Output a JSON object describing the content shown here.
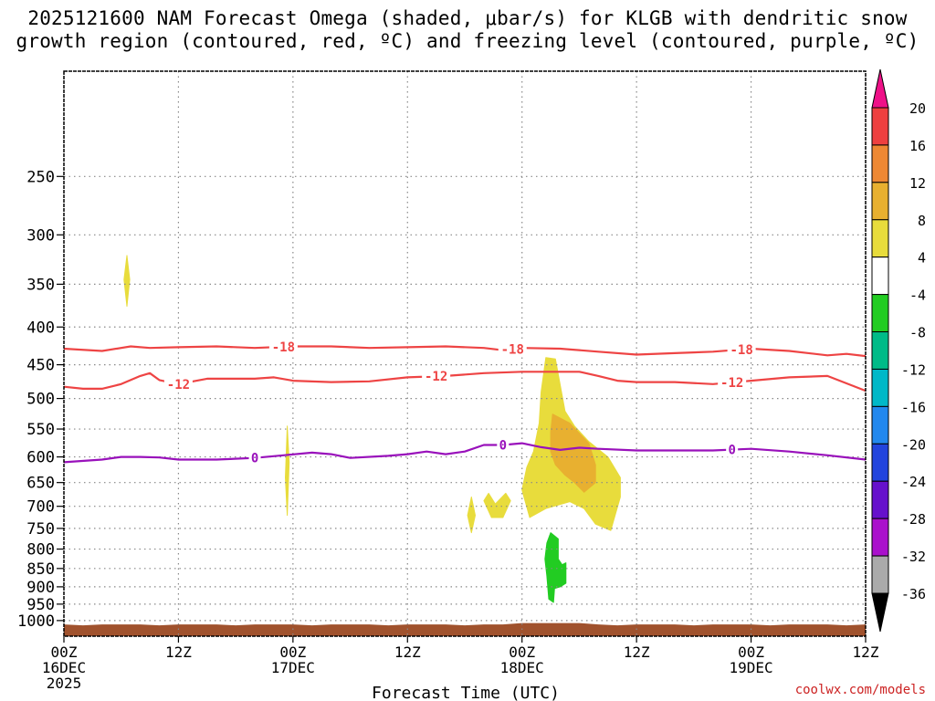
{
  "title": {
    "line1": "2025121600 NAM Forecast Omega (shaded, μbar/s) for KLGB with dendritic snow",
    "line2": "growth region (contoured, red, ºC) and freezing level (contoured, purple, ºC)"
  },
  "watermark": "coolwx.com/models",
  "chart_data": {
    "type": "heatmap",
    "title": "2025121600 NAM Forecast Omega (shaded, μbar/s) for KLGB with dendritic snow growth region (contoured, red, ºC) and freezing level (contoured, purple, ºC)",
    "xlabel": "Forecast Time (UTC)",
    "ylabel": "",
    "x_range_hours": [
      0,
      84
    ],
    "x_ticks": [
      {
        "hour": 0,
        "label": "00Z",
        "date": "16DEC",
        "year": "2025"
      },
      {
        "hour": 12,
        "label": "12Z",
        "date": "",
        "year": ""
      },
      {
        "hour": 24,
        "label": "00Z",
        "date": "17DEC",
        "year": ""
      },
      {
        "hour": 36,
        "label": "12Z",
        "date": "",
        "year": ""
      },
      {
        "hour": 48,
        "label": "00Z",
        "date": "18DEC",
        "year": ""
      },
      {
        "hour": 60,
        "label": "12Z",
        "date": "",
        "year": ""
      },
      {
        "hour": 72,
        "label": "00Z",
        "date": "19DEC",
        "year": ""
      },
      {
        "hour": 84,
        "label": "12Z",
        "date": "",
        "year": ""
      }
    ],
    "y_axis": "pressure (hPa), log scale, inverted",
    "y_range": [
      1050,
      180
    ],
    "y_ticks": [
      250,
      300,
      350,
      400,
      450,
      500,
      550,
      600,
      650,
      700,
      750,
      800,
      850,
      900,
      950,
      1000
    ],
    "grid": true,
    "colorbar": {
      "labels": [
        "20",
        "16",
        "12",
        "8",
        "4",
        "-4",
        "-8",
        "-12",
        "-16",
        "-20",
        "-24",
        "-28",
        "-32",
        "-36"
      ],
      "bins": [
        {
          "from": 16,
          "to": 20,
          "color": "#ee4040"
        },
        {
          "from": 12,
          "to": 16,
          "color": "#ee8833"
        },
        {
          "from": 8,
          "to": 12,
          "color": "#e8b030"
        },
        {
          "from": 4,
          "to": 8,
          "color": "#e8dc3c"
        },
        {
          "from": -4,
          "to": 4,
          "color": "#ffffff"
        },
        {
          "from": -8,
          "to": -4,
          "color": "#22cc22"
        },
        {
          "from": -12,
          "to": -8,
          "color": "#00bb88"
        },
        {
          "from": -16,
          "to": -12,
          "color": "#00b8c8"
        },
        {
          "from": -20,
          "to": -16,
          "color": "#2288ee"
        },
        {
          "from": -24,
          "to": -20,
          "color": "#2244dd"
        },
        {
          "from": -28,
          "to": -24,
          "color": "#6611cc"
        },
        {
          "from": -32,
          "to": -28,
          "color": "#aa11cc"
        },
        {
          "from": -36,
          "to": -32,
          "color": "#aaaaaa"
        }
      ],
      "top_arrow_color": "#ee1188",
      "bottom_arrow_color": "#000000"
    },
    "contours": [
      {
        "label": "-18",
        "color": "#ee4444",
        "label_hours": [
          23,
          47,
          71
        ],
        "points": [
          [
            0,
            428
          ],
          [
            4,
            431
          ],
          [
            7,
            425
          ],
          [
            9,
            427
          ],
          [
            12,
            426
          ],
          [
            16,
            425
          ],
          [
            20,
            427
          ],
          [
            24,
            425
          ],
          [
            28,
            425
          ],
          [
            32,
            427
          ],
          [
            36,
            426
          ],
          [
            40,
            425
          ],
          [
            44,
            427
          ],
          [
            46,
            430
          ],
          [
            48,
            427
          ],
          [
            52,
            428
          ],
          [
            56,
            432
          ],
          [
            60,
            436
          ],
          [
            64,
            434
          ],
          [
            68,
            432
          ],
          [
            72,
            428
          ],
          [
            76,
            431
          ],
          [
            80,
            437
          ],
          [
            82,
            435
          ],
          [
            84,
            438
          ]
        ]
      },
      {
        "label": "-12",
        "color": "#ee4444",
        "label_hours": [
          12,
          39,
          70
        ],
        "points": [
          [
            0,
            482
          ],
          [
            2,
            485
          ],
          [
            4,
            485
          ],
          [
            6,
            478
          ],
          [
            8,
            466
          ],
          [
            9,
            462
          ],
          [
            10,
            472
          ],
          [
            12,
            478
          ],
          [
            15,
            470
          ],
          [
            20,
            470
          ],
          [
            22,
            468
          ],
          [
            24,
            473
          ],
          [
            28,
            475
          ],
          [
            32,
            474
          ],
          [
            36,
            468
          ],
          [
            40,
            466
          ],
          [
            44,
            462
          ],
          [
            48,
            460
          ],
          [
            52,
            460
          ],
          [
            54,
            460
          ],
          [
            56,
            466
          ],
          [
            58,
            473
          ],
          [
            60,
            475
          ],
          [
            64,
            475
          ],
          [
            68,
            478
          ],
          [
            72,
            473
          ],
          [
            76,
            468
          ],
          [
            80,
            466
          ],
          [
            84,
            488
          ]
        ]
      },
      {
        "label": "0",
        "color": "#9911bb",
        "label_hours": [
          20,
          46,
          70
        ],
        "points": [
          [
            0,
            610
          ],
          [
            4,
            605
          ],
          [
            6,
            600
          ],
          [
            8,
            600
          ],
          [
            10,
            601
          ],
          [
            12,
            605
          ],
          [
            16,
            605
          ],
          [
            20,
            602
          ],
          [
            23,
            597
          ],
          [
            26,
            592
          ],
          [
            28,
            595
          ],
          [
            30,
            602
          ],
          [
            34,
            598
          ],
          [
            36,
            595
          ],
          [
            38,
            590
          ],
          [
            40,
            595
          ],
          [
            42,
            590
          ],
          [
            44,
            578
          ],
          [
            46,
            578
          ],
          [
            48,
            575
          ],
          [
            50,
            582
          ],
          [
            52,
            587
          ],
          [
            54,
            583
          ],
          [
            56,
            585
          ],
          [
            60,
            588
          ],
          [
            64,
            588
          ],
          [
            68,
            588
          ],
          [
            72,
            585
          ],
          [
            76,
            590
          ],
          [
            80,
            597
          ],
          [
            84,
            605
          ]
        ]
      }
    ],
    "shaded_regions": [
      {
        "value_bin": "4 to 8",
        "color": "#e8dc3c",
        "points": [
          [
            6.6,
            320
          ],
          [
            6.9,
            345
          ],
          [
            6.6,
            375
          ],
          [
            6.3,
            345
          ]
        ]
      },
      {
        "value_bin": "4 to 8",
        "color": "#e8dc3c",
        "points": [
          [
            23.4,
            545
          ],
          [
            23.6,
            610
          ],
          [
            23.4,
            720
          ],
          [
            23.2,
            640
          ]
        ]
      },
      {
        "value_bin": "4 to 8",
        "color": "#e8dc3c",
        "points": [
          [
            42.7,
            680
          ],
          [
            43.1,
            720
          ],
          [
            42.7,
            760
          ],
          [
            42.3,
            720
          ]
        ]
      },
      {
        "value_bin": "4 to 8",
        "color": "#e8dc3c",
        "points": [
          [
            44,
            688
          ],
          [
            44.5,
            672
          ],
          [
            45.2,
            695
          ],
          [
            46.3,
            672
          ],
          [
            46.8,
            688
          ],
          [
            46,
            725
          ],
          [
            44.8,
            725
          ]
        ]
      },
      {
        "value_bin": "4 to 8",
        "color": "#e8dc3c",
        "points": [
          [
            50.5,
            440
          ],
          [
            51.5,
            442
          ],
          [
            52.5,
            520
          ],
          [
            53.5,
            545
          ],
          [
            55,
            572
          ],
          [
            57,
            600
          ],
          [
            58.3,
            640
          ],
          [
            58.3,
            680
          ],
          [
            57.3,
            755
          ],
          [
            55.7,
            740
          ],
          [
            54.5,
            705
          ],
          [
            53,
            690
          ],
          [
            50.5,
            705
          ],
          [
            48.8,
            725
          ],
          [
            48,
            665
          ],
          [
            48.5,
            620
          ],
          [
            49.2,
            590
          ],
          [
            49.8,
            540
          ],
          [
            50,
            490
          ]
        ]
      },
      {
        "value_bin": "8 to 12",
        "color": "#e8b030",
        "points": [
          [
            51.2,
            525
          ],
          [
            53,
            540
          ],
          [
            55,
            575
          ],
          [
            55.7,
            615
          ],
          [
            55.7,
            650
          ],
          [
            54.5,
            670
          ],
          [
            53.5,
            650
          ],
          [
            52.5,
            635
          ],
          [
            51.5,
            615
          ],
          [
            51,
            590
          ],
          [
            51,
            555
          ]
        ]
      },
      {
        "value_bin": "-8 to -4",
        "color": "#22cc22",
        "points": [
          [
            51,
            760
          ],
          [
            51.8,
            775
          ],
          [
            51.8,
            825
          ],
          [
            52.2,
            840
          ],
          [
            52.6,
            835
          ],
          [
            52.6,
            890
          ],
          [
            52,
            900
          ],
          [
            51.4,
            905
          ],
          [
            51.3,
            945
          ],
          [
            50.8,
            935
          ],
          [
            50.6,
            870
          ],
          [
            50.4,
            825
          ],
          [
            50.6,
            785
          ]
        ]
      }
    ],
    "terrain": {
      "color": "#a0522d",
      "top_pressure": 1012
    }
  },
  "axis": {
    "xlabel": "Forecast Time (UTC)"
  }
}
